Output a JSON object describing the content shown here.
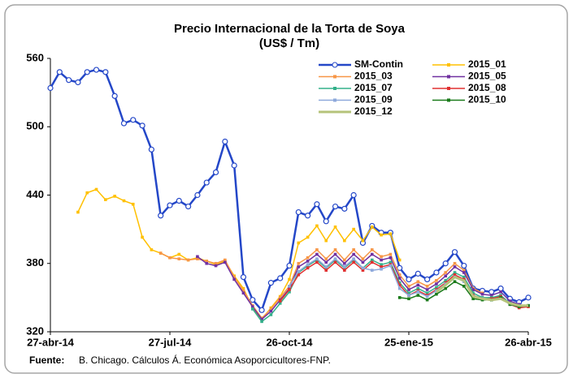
{
  "chart_data": {
    "type": "line",
    "title": "Precio Internacional de la Torta de Soya",
    "subtitle": "(US$ / Tm)",
    "source_label": "Fuente:",
    "source_text": "B. Chicago. Cálculos Á. Económica Asoporcicultores-FNP.",
    "categories": [
      "27-abr-14",
      null,
      null,
      null,
      null,
      null,
      null,
      null,
      null,
      null,
      null,
      null,
      null,
      "27-jul-14",
      null,
      null,
      null,
      null,
      null,
      null,
      null,
      null,
      null,
      null,
      null,
      null,
      "26-oct-14",
      null,
      null,
      null,
      null,
      null,
      null,
      null,
      null,
      null,
      null,
      null,
      null,
      "25-ene-15",
      null,
      null,
      null,
      null,
      null,
      null,
      null,
      null,
      null,
      null,
      null,
      null,
      "26-abr-15"
    ],
    "ylim": [
      320,
      560
    ],
    "yticks": [
      320,
      380,
      440,
      500,
      560
    ],
    "grid": false,
    "series": [
      {
        "name": "SM-Contin",
        "color": "#2447c8",
        "values": [
          534,
          548,
          541,
          539,
          548,
          550,
          548,
          527,
          503,
          506,
          501,
          480,
          422,
          431,
          435,
          430,
          440,
          451,
          460,
          487,
          466,
          368,
          348,
          339,
          363,
          367,
          378,
          425,
          422,
          432,
          417,
          430,
          428,
          440,
          398,
          413,
          407,
          407,
          376,
          366,
          371,
          366,
          372,
          380,
          390,
          378,
          358,
          356,
          355,
          358,
          349,
          346,
          350
        ]
      },
      {
        "name": "2015_01",
        "color": "#ffc000",
        "values": [
          null,
          null,
          null,
          425,
          442,
          445,
          436,
          439,
          435,
          432,
          403,
          392,
          389,
          385,
          388,
          383,
          385,
          382,
          379,
          382,
          369,
          358,
          341,
          331,
          341,
          351,
          366,
          398,
          403,
          413,
          400,
          412,
          400,
          410,
          400,
          412,
          405,
          406,
          383,
          null,
          null,
          null,
          null,
          null,
          null,
          null,
          null,
          null,
          null,
          null,
          null,
          null,
          null
        ]
      },
      {
        "name": "2015_03",
        "color": "#f79646",
        "values": [
          null,
          null,
          null,
          null,
          null,
          null,
          null,
          null,
          null,
          null,
          null,
          null,
          389,
          385,
          384,
          383,
          384,
          382,
          380,
          383,
          368,
          356,
          343,
          332,
          340,
          350,
          360,
          380,
          385,
          392,
          384,
          392,
          383,
          392,
          384,
          392,
          386,
          388,
          370,
          360,
          364,
          360,
          365,
          372,
          380,
          374,
          358,
          354,
          null,
          null,
          null,
          null,
          null
        ]
      },
      {
        "name": "2015_05",
        "color": "#7030a0",
        "values": [
          null,
          null,
          null,
          null,
          null,
          null,
          null,
          null,
          null,
          null,
          null,
          null,
          null,
          null,
          null,
          null,
          386,
          380,
          378,
          381,
          366,
          354,
          342,
          331,
          338,
          348,
          358,
          377,
          382,
          388,
          381,
          388,
          380,
          388,
          381,
          388,
          383,
          385,
          367,
          357,
          361,
          357,
          362,
          369,
          377,
          372,
          357,
          353,
          352,
          355,
          347,
          344,
          null
        ]
      },
      {
        "name": "2015_07",
        "color": "#33b08a",
        "values": [
          null,
          null,
          null,
          null,
          null,
          null,
          null,
          null,
          null,
          null,
          null,
          null,
          null,
          null,
          null,
          null,
          null,
          null,
          null,
          null,
          null,
          null,
          340,
          329,
          335,
          345,
          355,
          372,
          378,
          383,
          376,
          383,
          376,
          383,
          376,
          383,
          379,
          381,
          363,
          354,
          358,
          354,
          359,
          365,
          372,
          368,
          354,
          350,
          350,
          352,
          345,
          342,
          343
        ]
      },
      {
        "name": "2015_08",
        "color": "#e03030",
        "values": [
          null,
          null,
          null,
          null,
          null,
          null,
          null,
          null,
          null,
          null,
          null,
          null,
          null,
          null,
          null,
          null,
          null,
          null,
          null,
          null,
          null,
          null,
          null,
          null,
          null,
          347,
          357,
          370,
          376,
          381,
          374,
          381,
          374,
          381,
          374,
          381,
          377,
          379,
          361,
          352,
          356,
          352,
          357,
          363,
          370,
          366,
          352,
          349,
          349,
          351,
          344,
          341,
          342
        ]
      },
      {
        "name": "2015_09",
        "color": "#8ea9db",
        "values": [
          null,
          null,
          null,
          null,
          null,
          null,
          null,
          null,
          null,
          null,
          null,
          null,
          null,
          null,
          null,
          null,
          null,
          null,
          null,
          null,
          null,
          null,
          null,
          null,
          null,
          null,
          360,
          373,
          379,
          384,
          377,
          384,
          377,
          384,
          376,
          374,
          375,
          378,
          358,
          352,
          355,
          351,
          356,
          362,
          368,
          364,
          351,
          349,
          348,
          350,
          344,
          342,
          343
        ]
      },
      {
        "name": "2015_10",
        "color": "#1a7a1a",
        "values": [
          null,
          null,
          null,
          null,
          null,
          null,
          null,
          null,
          null,
          null,
          null,
          null,
          null,
          null,
          null,
          null,
          null,
          null,
          null,
          null,
          null,
          null,
          null,
          null,
          null,
          null,
          null,
          null,
          null,
          null,
          null,
          null,
          null,
          null,
          null,
          null,
          null,
          null,
          350,
          349,
          352,
          348,
          353,
          358,
          364,
          360,
          349,
          348,
          348,
          350,
          344,
          342,
          343
        ]
      },
      {
        "name": "2015_12",
        "color": "#b5c37a",
        "values": [
          null,
          null,
          null,
          null,
          null,
          null,
          null,
          null,
          null,
          null,
          null,
          null,
          null,
          null,
          null,
          null,
          null,
          null,
          null,
          null,
          null,
          null,
          null,
          null,
          null,
          null,
          null,
          null,
          null,
          null,
          null,
          null,
          null,
          null,
          null,
          null,
          null,
          null,
          null,
          null,
          null,
          null,
          355,
          361,
          368,
          365,
          351,
          349,
          348,
          349,
          345,
          343,
          343
        ]
      }
    ]
  }
}
